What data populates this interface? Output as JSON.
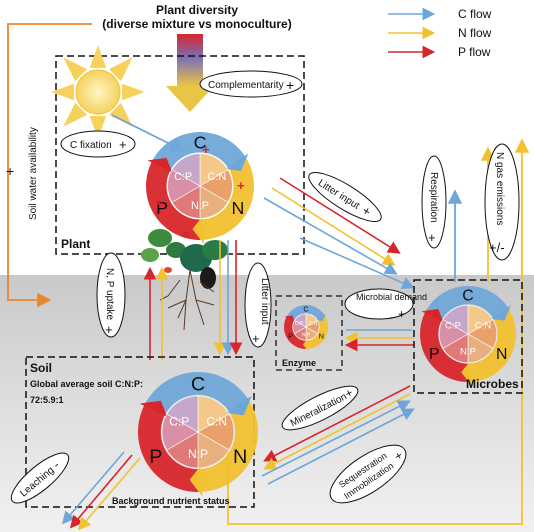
{
  "title": {
    "line1": "Plant diversity",
    "line2": "(diverse mixture vs monoculture)"
  },
  "legend": [
    {
      "label": "C flow",
      "color": "#6fa6d8"
    },
    {
      "label": "N flow",
      "color": "#f2c12e"
    },
    {
      "label": "P flow",
      "color": "#d7262b"
    }
  ],
  "colors": {
    "c": "#6fa6d8",
    "n": "#f2c12e",
    "p": "#d7262b",
    "orange": "#e9862a"
  },
  "labels": {
    "complementarity": "Complementarity",
    "c_fixation": "C fixation",
    "soil_water": "Soil water availability",
    "plant": "Plant",
    "litter_input_top": "Litter input",
    "litter_input_mid": "Litter input",
    "respiration": "Respiration",
    "n_gas": "N gas emissions",
    "np_uptake": "N, P uptake",
    "microbial_demand": "Microbial demand",
    "enzyme": "Enzyme",
    "microbes": "Microbes",
    "soil": "Soil",
    "soil_ratio_1": "Global average soil C:N:P:",
    "soil_ratio_2": "72:5.9:1",
    "mineralization": "Mineralization",
    "sequestration_1": "Sequestration",
    "sequestration_2": "Immobilization",
    "leaching": "Leaching",
    "background": "Background nutrient status"
  },
  "signs": {
    "soil_water": "+",
    "complementarity": "+",
    "c_fixation": "+",
    "litter_input_top": "+",
    "respiration": "+",
    "n_gas": "+/-",
    "np_uptake": "+",
    "microbial_demand": "+",
    "litter_input_mid": "+",
    "mineralization": "+",
    "sequestration": "+",
    "leaching": "-"
  },
  "wheel": {
    "c": "C",
    "n": "N",
    "p": "P",
    "cn": "C:N",
    "np": "N:P",
    "cp": "C:P",
    "plus": "+"
  }
}
